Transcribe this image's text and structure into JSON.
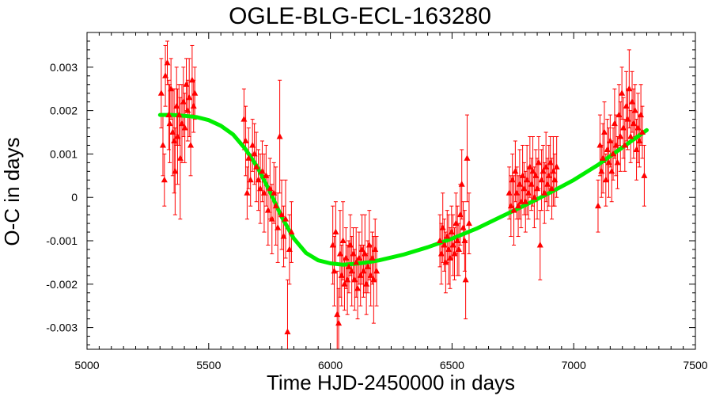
{
  "chart_data": {
    "type": "scatter",
    "title": "OGLE-BLG-ECL-163280",
    "xlabel": "Time HJD-2450000 in days",
    "ylabel": "O-C in days",
    "xlim": [
      5000,
      7500
    ],
    "ylim": [
      -0.0035,
      0.0038
    ],
    "x_ticks": [
      5000,
      5500,
      6000,
      6500,
      7000,
      7500
    ],
    "x_tick_labels": [
      "5000",
      "5500",
      "6000",
      "6500",
      "7000",
      "7500"
    ],
    "y_ticks": [
      -0.003,
      -0.002,
      -0.001,
      0,
      0.001,
      0.002,
      0.003
    ],
    "y_tick_labels": [
      "-0.003",
      "-0.002",
      "-0.001",
      "0",
      "0.001",
      "0.002",
      "0.003"
    ],
    "grid": false,
    "colors": {
      "observed": "#ff0000",
      "model": "#00ee00"
    },
    "series": [
      {
        "role": "observed",
        "style": "triangles with error bars",
        "points": [
          [
            5305,
            0.0024,
            0.0008
          ],
          [
            5312,
            0.0012,
            0.0007
          ],
          [
            5318,
            0.0004,
            0.0006
          ],
          [
            5322,
            0.0028,
            0.0007
          ],
          [
            5330,
            0.0031,
            0.0005
          ],
          [
            5336,
            0.0019,
            0.0008
          ],
          [
            5340,
            0.0017,
            0.0009
          ],
          [
            5345,
            0.0025,
            0.0007
          ],
          [
            5352,
            0.0015,
            0.001
          ],
          [
            5358,
            0.0013,
            0.0012
          ],
          [
            5362,
            0.0006,
            0.001
          ],
          [
            5368,
            0.0021,
            0.0009
          ],
          [
            5372,
            0.0014,
            0.0011
          ],
          [
            5378,
            0.0019,
            0.0007
          ],
          [
            5383,
            0.0009,
            0.0014
          ],
          [
            5390,
            0.0017,
            0.0009
          ],
          [
            5396,
            0.0022,
            0.0008
          ],
          [
            5402,
            0.0016,
            0.0008
          ],
          [
            5408,
            0.0026,
            0.0006
          ],
          [
            5414,
            0.002,
            0.0007
          ],
          [
            5420,
            0.0023,
            0.0009
          ],
          [
            5426,
            0.0012,
            0.0007
          ],
          [
            5432,
            0.0027,
            0.0008
          ],
          [
            5438,
            0.0021,
            0.0006
          ],
          [
            5443,
            0.0024,
            0.0006
          ],
          [
            5645,
            0.0018,
            0.0007
          ],
          [
            5652,
            0.0013,
            0.0008
          ],
          [
            5658,
            0.0001,
            0.0006
          ],
          [
            5664,
            0.0009,
            0.0007
          ],
          [
            5672,
            0.0004,
            0.0006
          ],
          [
            5680,
            0.0012,
            0.0006
          ],
          [
            5688,
            0.001,
            0.0007
          ],
          [
            5696,
            0.0007,
            0.0008
          ],
          [
            5704,
            0.0004,
            0.0007
          ],
          [
            5712,
            0.0002,
            0.0008
          ],
          [
            5720,
            0.0006,
            0.0007
          ],
          [
            5728,
            0.0001,
            0.0009
          ],
          [
            5736,
            0.0005,
            0.0007
          ],
          [
            5744,
            -0.0003,
            0.0008
          ],
          [
            5752,
            0.0002,
            0.0007
          ],
          [
            5760,
            -0.0005,
            0.0008
          ],
          [
            5768,
            0.0001,
            0.0007
          ],
          [
            5776,
            -0.0002,
            0.0009
          ],
          [
            5784,
            -0.0007,
            0.0008
          ],
          [
            5792,
            0.0014,
            0.0013
          ],
          [
            5800,
            -0.0004,
            0.0008
          ],
          [
            5808,
            -0.0009,
            0.0007
          ],
          [
            5816,
            -0.0005,
            0.0009
          ],
          [
            5824,
            -0.0031,
            0.0012
          ],
          [
            5832,
            -0.0012,
            0.0008
          ],
          [
            5840,
            -0.0008,
            0.0007
          ],
          [
            6010,
            -0.0011,
            0.0009
          ],
          [
            6016,
            -0.0017,
            0.0008
          ],
          [
            6022,
            -0.0008,
            0.0007
          ],
          [
            6028,
            -0.0027,
            0.001
          ],
          [
            6034,
            -0.0029,
            0.0008
          ],
          [
            6040,
            -0.0013,
            0.001
          ],
          [
            6046,
            -0.0018,
            0.0007
          ],
          [
            6052,
            -0.001,
            0.0009
          ],
          [
            6058,
            -0.002,
            0.0006
          ],
          [
            6064,
            -0.0014,
            0.0007
          ],
          [
            6070,
            -0.0019,
            0.0008
          ],
          [
            6076,
            -0.0016,
            0.0006
          ],
          [
            6082,
            -0.0011,
            0.0007
          ],
          [
            6088,
            -0.0017,
            0.0008
          ],
          [
            6094,
            -0.0013,
            0.0006
          ],
          [
            6100,
            -0.0019,
            0.0007
          ],
          [
            6106,
            -0.0015,
            0.0008
          ],
          [
            6112,
            -0.0021,
            0.0007
          ],
          [
            6118,
            -0.0014,
            0.0006
          ],
          [
            6124,
            -0.0018,
            0.0007
          ],
          [
            6130,
            -0.0012,
            0.0008
          ],
          [
            6136,
            -0.0017,
            0.0006
          ],
          [
            6142,
            -0.0013,
            0.0009
          ],
          [
            6148,
            -0.002,
            0.0007
          ],
          [
            6154,
            -0.0016,
            0.0006
          ],
          [
            6160,
            -0.0011,
            0.0008
          ],
          [
            6166,
            -0.0018,
            0.0007
          ],
          [
            6172,
            -0.0014,
            0.0006
          ],
          [
            6178,
            -0.0019,
            0.001
          ],
          [
            6184,
            -0.0012,
            0.0007
          ],
          [
            6190,
            -0.0017,
            0.0008
          ],
          [
            6450,
            -0.001,
            0.0006
          ],
          [
            6456,
            -0.0013,
            0.0007
          ],
          [
            6462,
            -0.0007,
            0.0008
          ],
          [
            6468,
            -0.0011,
            0.0006
          ],
          [
            6474,
            -0.0015,
            0.0007
          ],
          [
            6480,
            -0.0009,
            0.0006
          ],
          [
            6486,
            -0.0012,
            0.0008
          ],
          [
            6492,
            -0.0014,
            0.0007
          ],
          [
            6498,
            -0.0008,
            0.0006
          ],
          [
            6504,
            -0.0011,
            0.0007
          ],
          [
            6510,
            -0.0013,
            0.0006
          ],
          [
            6516,
            -0.0006,
            0.0007
          ],
          [
            6522,
            -0.001,
            0.0008
          ],
          [
            6528,
            -0.0012,
            0.0006
          ],
          [
            6534,
            -0.0004,
            0.0007
          ],
          [
            6540,
            0.0003,
            0.0008
          ],
          [
            6546,
            -0.0007,
            0.0006
          ],
          [
            6552,
            -0.001,
            0.0007
          ],
          [
            6556,
            -0.0019,
            0.0009
          ],
          [
            6562,
            0.0009,
            0.001
          ],
          [
            6570,
            -0.0006,
            0.0007
          ],
          [
            6735,
            0.0001,
            0.0006
          ],
          [
            6742,
            -0.0002,
            0.0007
          ],
          [
            6748,
            0.0004,
            0.0006
          ],
          [
            6754,
            -0.0003,
            0.0008
          ],
          [
            6760,
            0.0006,
            0.0007
          ],
          [
            6766,
            0.0001,
            0.0006
          ],
          [
            6772,
            -0.0002,
            0.0007
          ],
          [
            6778,
            0.0003,
            0.0008
          ],
          [
            6784,
            -0.0001,
            0.0006
          ],
          [
            6790,
            0.0005,
            0.0007
          ],
          [
            6796,
            0.0002,
            0.0006
          ],
          [
            6802,
            -0.0001,
            0.0007
          ],
          [
            6808,
            0.0004,
            0.0008
          ],
          [
            6814,
            0.0001,
            0.0006
          ],
          [
            6820,
            0.0007,
            0.0007
          ],
          [
            6826,
            0.0003,
            0.0006
          ],
          [
            6832,
            0.0006,
            0.0008
          ],
          [
            6838,
            0.0,
            0.0007
          ],
          [
            6844,
            0.0005,
            0.0006
          ],
          [
            6850,
            0.0002,
            0.0007
          ],
          [
            6856,
            0.0008,
            0.0006
          ],
          [
            6862,
            -0.0011,
            0.0008
          ],
          [
            6868,
            0.0004,
            0.0007
          ],
          [
            6874,
            0.0006,
            0.0006
          ],
          [
            6880,
            0.0001,
            0.0007
          ],
          [
            6886,
            0.0007,
            0.0008
          ],
          [
            6892,
            0.0003,
            0.0006
          ],
          [
            6898,
            0.0005,
            0.0007
          ],
          [
            6904,
            0.0008,
            0.0006
          ],
          [
            6910,
            0.0002,
            0.0007
          ],
          [
            6916,
            0.0006,
            0.0008
          ],
          [
            6922,
            0.0004,
            0.0006
          ],
          [
            6930,
            0.0007,
            0.0007
          ],
          [
            7100,
            -0.0002,
            0.0006
          ],
          [
            7108,
            0.0012,
            0.0007
          ],
          [
            7114,
            0.0006,
            0.0006
          ],
          [
            7120,
            0.0009,
            0.0008
          ],
          [
            7126,
            0.0015,
            0.0007
          ],
          [
            7132,
            0.0004,
            0.0006
          ],
          [
            7138,
            0.0011,
            0.0007
          ],
          [
            7144,
            0.0008,
            0.0008
          ],
          [
            7150,
            0.0013,
            0.0006
          ],
          [
            7156,
            0.0006,
            0.0007
          ],
          [
            7162,
            0.001,
            0.0006
          ],
          [
            7168,
            0.0017,
            0.0008
          ],
          [
            7174,
            0.0012,
            0.0007
          ],
          [
            7180,
            0.0008,
            0.0006
          ],
          [
            7186,
            0.0019,
            0.0007
          ],
          [
            7192,
            0.0014,
            0.0008
          ],
          [
            7198,
            0.0024,
            0.0006
          ],
          [
            7204,
            0.0016,
            0.0007
          ],
          [
            7210,
            0.0012,
            0.0006
          ],
          [
            7216,
            0.0021,
            0.0008
          ],
          [
            7222,
            0.0018,
            0.0007
          ],
          [
            7228,
            0.0025,
            0.0009
          ],
          [
            7234,
            0.0014,
            0.0006
          ],
          [
            7240,
            0.0022,
            0.0007
          ],
          [
            7246,
            0.0017,
            0.0008
          ],
          [
            7252,
            0.002,
            0.0006
          ],
          [
            7258,
            0.0011,
            0.0007
          ],
          [
            7264,
            0.0016,
            0.0008
          ],
          [
            7270,
            0.0013,
            0.0006
          ],
          [
            7276,
            0.0019,
            0.0007
          ],
          [
            7282,
            0.0015,
            0.0006
          ],
          [
            7290,
            0.0005,
            0.0007
          ]
        ]
      },
      {
        "role": "model",
        "style": "fit curve",
        "x": [
          5300,
          5350,
          5400,
          5450,
          5500,
          5550,
          5600,
          5650,
          5700,
          5750,
          5800,
          5850,
          5900,
          5950,
          6000,
          6050,
          6100,
          6150,
          6200,
          6300,
          6400,
          6500,
          6600,
          6700,
          6800,
          6900,
          7000,
          7100,
          7200,
          7300
        ],
        "values": [
          0.0019,
          0.0019,
          0.00188,
          0.00185,
          0.00178,
          0.00165,
          0.00145,
          0.00112,
          0.0007,
          0.00015,
          -0.00045,
          -0.00095,
          -0.00128,
          -0.00145,
          -0.00152,
          -0.00155,
          -0.00153,
          -0.0015,
          -0.00145,
          -0.00132,
          -0.00115,
          -0.00095,
          -0.00072,
          -0.00045,
          -0.00018,
          0.0001,
          0.0004,
          0.00075,
          0.00115,
          0.00155
        ]
      }
    ]
  }
}
